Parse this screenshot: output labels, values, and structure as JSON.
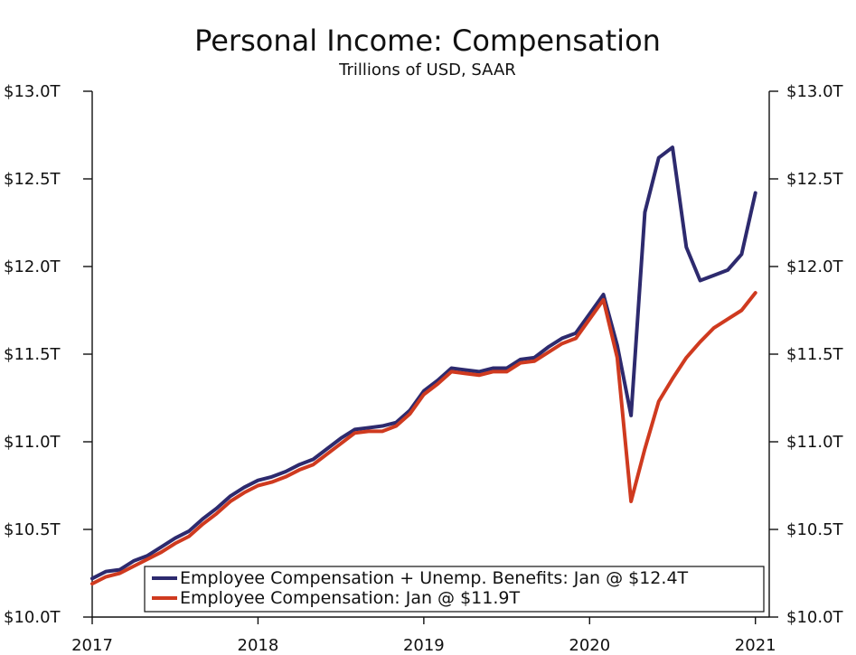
{
  "chart_data": {
    "type": "line",
    "title": "Personal Income: Compensation",
    "subtitle": "Trillions of USD, SAAR",
    "ylim": [
      10.0,
      13.0
    ],
    "y_ticks": [
      10.0,
      10.5,
      11.0,
      11.5,
      12.0,
      12.5,
      13.0
    ],
    "y_tick_labels": [
      "$10.0T",
      "$10.5T",
      "$11.0T",
      "$11.5T",
      "$12.0T",
      "$12.5T",
      "$13.0T"
    ],
    "x_range": [
      "2017-01",
      "2021-02"
    ],
    "x_ticks": [
      "2017-01",
      "2018-01",
      "2019-01",
      "2020-01",
      "2021-01"
    ],
    "x_tick_labels": [
      "2017",
      "2018",
      "2019",
      "2020",
      "2021"
    ],
    "legend_position": "bottom-right",
    "x": [
      "2017-01",
      "2017-02",
      "2017-03",
      "2017-04",
      "2017-05",
      "2017-06",
      "2017-07",
      "2017-08",
      "2017-09",
      "2017-10",
      "2017-11",
      "2017-12",
      "2018-01",
      "2018-02",
      "2018-03",
      "2018-04",
      "2018-05",
      "2018-06",
      "2018-07",
      "2018-08",
      "2018-09",
      "2018-10",
      "2018-11",
      "2018-12",
      "2019-01",
      "2019-02",
      "2019-03",
      "2019-04",
      "2019-05",
      "2019-06",
      "2019-07",
      "2019-08",
      "2019-09",
      "2019-10",
      "2019-11",
      "2019-12",
      "2020-01",
      "2020-02",
      "2020-03",
      "2020-04",
      "2020-05",
      "2020-06",
      "2020-07",
      "2020-08",
      "2020-09",
      "2020-10",
      "2020-11",
      "2020-12",
      "2021-01"
    ],
    "series": [
      {
        "name": "Employee Compensation + Unemp. Benefits: Jan @ $12.4T",
        "color": "#2d2a6e",
        "values": [
          10.22,
          10.26,
          10.27,
          10.32,
          10.35,
          10.4,
          10.45,
          10.49,
          10.56,
          10.62,
          10.69,
          10.74,
          10.78,
          10.8,
          10.83,
          10.87,
          10.9,
          10.96,
          11.02,
          11.07,
          11.08,
          11.09,
          11.11,
          11.18,
          11.29,
          11.35,
          11.42,
          11.41,
          11.4,
          11.42,
          11.42,
          11.47,
          11.48,
          11.54,
          11.59,
          11.62,
          11.73,
          11.84,
          11.55,
          11.15,
          12.31,
          12.62,
          12.68,
          12.11,
          11.92,
          11.95,
          11.98,
          12.07,
          12.42
        ]
      },
      {
        "name": "Employee Compensation: Jan @ $11.9T",
        "color": "#cf3a1f",
        "values": [
          10.19,
          10.23,
          10.25,
          10.29,
          10.33,
          10.37,
          10.42,
          10.46,
          10.53,
          10.59,
          10.66,
          10.71,
          10.75,
          10.77,
          10.8,
          10.84,
          10.87,
          10.93,
          10.99,
          11.05,
          11.06,
          11.06,
          11.09,
          11.16,
          11.27,
          11.33,
          11.4,
          11.39,
          11.38,
          11.4,
          11.4,
          11.45,
          11.46,
          11.51,
          11.56,
          11.59,
          11.7,
          11.81,
          11.48,
          10.66,
          10.96,
          11.23,
          11.36,
          11.48,
          11.57,
          11.65,
          11.7,
          11.75,
          11.85
        ]
      }
    ]
  }
}
